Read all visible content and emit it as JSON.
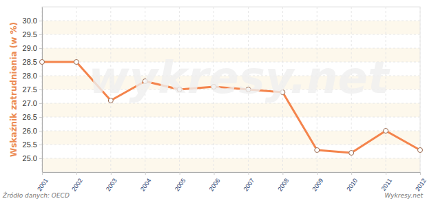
{
  "chart_data": {
    "type": "line",
    "y_label": "Wskaźnik zatrudnienia (w %)",
    "annotations": [
      "Źródło danych: OECD",
      "Wykresy.net",
      "wykresy.net"
    ],
    "x": [
      2001,
      2002,
      2003,
      2004,
      2005,
      2006,
      2007,
      2008,
      2009,
      2010,
      2011,
      2012
    ],
    "values": [
      28.5,
      28.5,
      27.1,
      27.8,
      27.5,
      27.6,
      27.5,
      27.4,
      25.3,
      25.2,
      26.0,
      25.3
    ],
    "color": "#f4844c",
    "marker": "circle",
    "line_style": "solid",
    "xlim": [
      2001,
      2012
    ],
    "xticks": [
      2001,
      2002,
      2003,
      2004,
      2005,
      2006,
      2007,
      2008,
      2009,
      2010,
      2011,
      2012
    ],
    "ylim": [
      24.5,
      30.5
    ],
    "yticks": [
      {
        "value": 25,
        "label": "25.0"
      },
      25.5,
      {
        "value": 26,
        "label": "26.0"
      },
      26.5,
      {
        "value": 27,
        "label": "27.0"
      },
      27.5,
      {
        "value": 28,
        "label": "28.0"
      },
      28.5,
      {
        "value": 29,
        "label": "29.0"
      },
      29.5,
      {
        "value": 30,
        "label": "30.0"
      }
    ],
    "grid": true
  }
}
